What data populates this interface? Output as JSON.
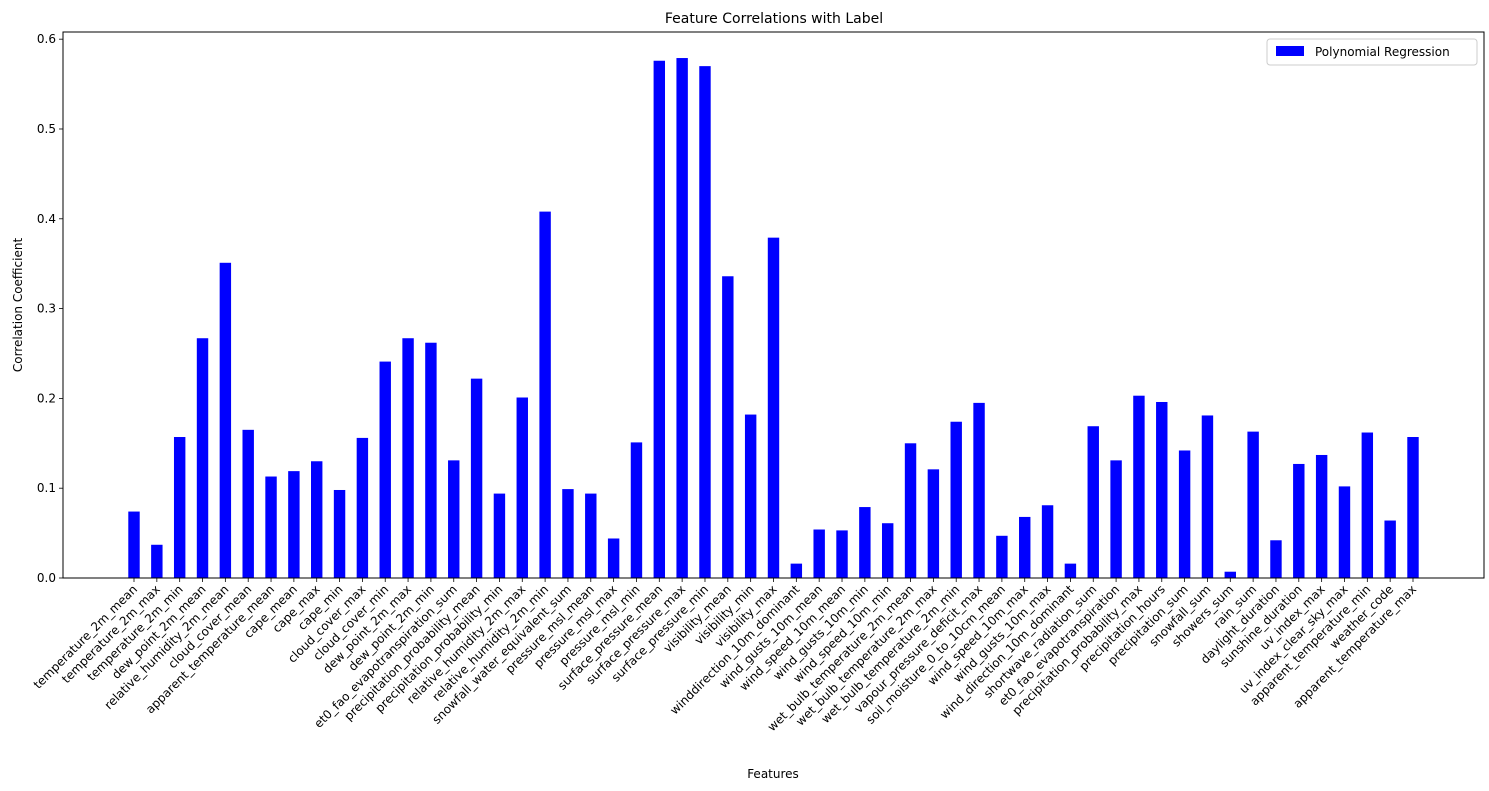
{
  "chart_data": {
    "type": "bar",
    "title": "Feature Correlations with Label",
    "xlabel": "Features",
    "ylabel": "Correlation Coefficient",
    "ylim": [
      0,
      0.608
    ],
    "yticks": [
      "0.0",
      "0.1",
      "0.2",
      "0.3",
      "0.4",
      "0.5",
      "0.6"
    ],
    "grid": false,
    "legend_position": "top-right",
    "bar_color": "#0000ff",
    "series": [
      {
        "name": "Polynomial Regression",
        "values": [
          0.074,
          0.037,
          0.157,
          0.267,
          0.351,
          0.165,
          0.113,
          0.119,
          0.13,
          0.098,
          0.156,
          0.241,
          0.267,
          0.262,
          0.131,
          0.222,
          0.094,
          0.201,
          0.408,
          0.099,
          0.094,
          0.044,
          0.151,
          0.576,
          0.579,
          0.57,
          0.336,
          0.182,
          0.379,
          0.016,
          0.054,
          0.053,
          0.079,
          0.061,
          0.15,
          0.121,
          0.174,
          0.195,
          0.047,
          0.068,
          0.081,
          0.016,
          0.169,
          0.131,
          0.203,
          0.196,
          0.142,
          0.181,
          0.007,
          0.163,
          0.042,
          0.127,
          0.137,
          0.102,
          0.162,
          0.064,
          0.157
        ]
      }
    ],
    "categories": [
      "temperature_2m_mean",
      "temperature_2m_max",
      "temperature_2m_min",
      "dew_point_2m_mean",
      "relative_humidity_2m_mean",
      "cloud_cover_mean",
      "apparent_temperature_mean",
      "cape_mean",
      "cape_max",
      "cape_min",
      "cloud_cover_max",
      "cloud_cover_min",
      "dew_point_2m_max",
      "dew_point_2m_min",
      "et0_fao_evapotranspiration_sum",
      "precipitation_probability_mean",
      "precipitation_probability_min",
      "relative_humidity_2m_max",
      "relative_humidity_2m_min",
      "snowfall_water_equivalent_sum",
      "pressure_msl_mean",
      "pressure_msl_max",
      "pressure_msl_min",
      "surface_pressure_mean",
      "surface_pressure_max",
      "surface_pressure_min",
      "visibility_mean",
      "visibility_min",
      "visibility_max",
      "winddirection_10m_dominant",
      "wind_gusts_10m_mean",
      "wind_speed_10m_mean",
      "wind_gusts_10m_min",
      "wind_speed_10m_min",
      "wet_bulb_temperature_2m_mean",
      "wet_bulb_temperature_2m_max",
      "wet_bulb_temperature_2m_min",
      "vapour_pressure_deficit_max",
      "soil_moisture_0_to_10cm_mean",
      "wind_speed_10m_max",
      "wind_gusts_10m_max",
      "wind_direction_10m_dominant",
      "shortwave_radiation_sum",
      "et0_fao_evapotranspiration",
      "precipitation_probability_max",
      "precipitation_hours",
      "precipitation_sum",
      "snowfall_sum",
      "showers_sum",
      "rain_sum",
      "daylight_duration",
      "sunshine_duration",
      "uv_index_max",
      "uv_index_clear_sky_max",
      "apparent_temperature_min",
      "weather_code",
      "apparent_temperature_max"
    ]
  }
}
